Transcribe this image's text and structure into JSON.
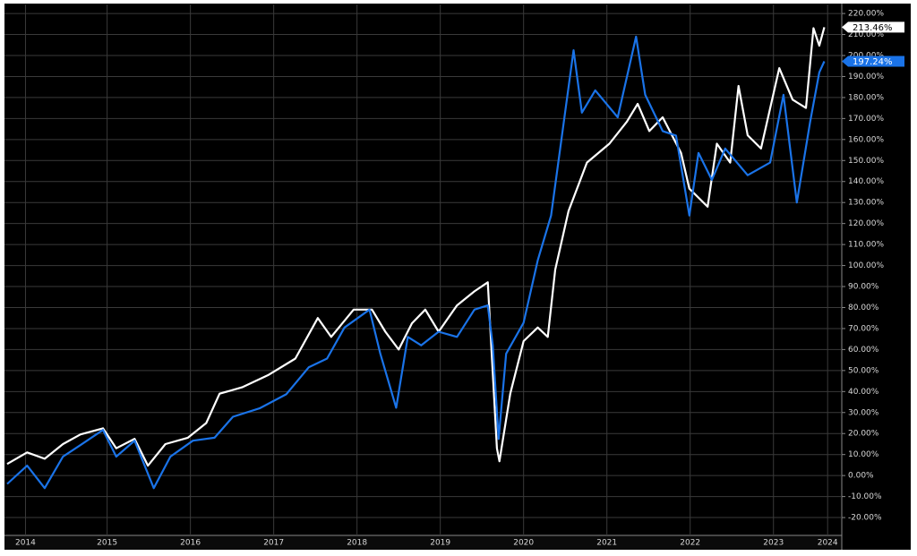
{
  "chart_data": {
    "type": "line",
    "xlim": [
      2014.3,
      2024.32
    ],
    "ylim": [
      -28.5,
      224.3
    ],
    "xticks": [
      {
        "value": 2014.52,
        "label": "2014"
      },
      {
        "value": 2015.5,
        "label": "2015"
      },
      {
        "value": 2016.5,
        "label": "2016"
      },
      {
        "value": 2017.5,
        "label": "2017"
      },
      {
        "value": 2018.5,
        "label": "2018"
      },
      {
        "value": 2019.5,
        "label": "2019"
      },
      {
        "value": 2020.5,
        "label": "2020"
      },
      {
        "value": 2021.5,
        "label": "2021"
      },
      {
        "value": 2022.5,
        "label": "2022"
      },
      {
        "value": 2023.5,
        "label": "2023"
      },
      {
        "value": 2024.15,
        "label": "2024"
      }
    ],
    "yticks": [
      {
        "value": -20,
        "label": "-20.00%"
      },
      {
        "value": -10,
        "label": "-10.00%"
      },
      {
        "value": 0,
        "label": "0.00%"
      },
      {
        "value": 10,
        "label": "10.00%"
      },
      {
        "value": 20,
        "label": "20.00%"
      },
      {
        "value": 30,
        "label": "30.00%"
      },
      {
        "value": 40,
        "label": "40.00%"
      },
      {
        "value": 50,
        "label": "50.00%"
      },
      {
        "value": 60,
        "label": "60.00%"
      },
      {
        "value": 70,
        "label": "70.00%"
      },
      {
        "value": 80,
        "label": "80.00%"
      },
      {
        "value": 90,
        "label": "90.00%"
      },
      {
        "value": 100,
        "label": "100.00%"
      },
      {
        "value": 110,
        "label": "110.00%"
      },
      {
        "value": 120,
        "label": "120.00%"
      },
      {
        "value": 130,
        "label": "130.00%"
      },
      {
        "value": 140,
        "label": "140.00%"
      },
      {
        "value": 150,
        "label": "150.00%"
      },
      {
        "value": 160,
        "label": "160.00%"
      },
      {
        "value": 170,
        "label": "170.00%"
      },
      {
        "value": 180,
        "label": "180.00%"
      },
      {
        "value": 190,
        "label": "190.00%"
      },
      {
        "value": 200,
        "label": "200.00%"
      },
      {
        "value": 210,
        "label": "210.00%"
      },
      {
        "value": 220,
        "label": "220.00%"
      }
    ],
    "grid": true,
    "series": [
      {
        "color": "#ffffff",
        "label_text_color": "#000000",
        "x": [
          2014.3,
          2014.54,
          2014.75,
          2014.97,
          2015.18,
          2015.45,
          2015.61,
          2015.83,
          2015.99,
          2016.2,
          2016.47,
          2016.69,
          2016.85,
          2017.12,
          2017.44,
          2017.76,
          2018.03,
          2018.19,
          2018.46,
          2018.68,
          2018.84,
          2019.0,
          2019.16,
          2019.32,
          2019.48,
          2019.7,
          2019.91,
          2020.07,
          2020.18,
          2020.21,
          2020.34,
          2020.5,
          2020.67,
          2020.79,
          2020.88,
          2021.04,
          2021.26,
          2021.53,
          2021.74,
          2021.87,
          2022.01,
          2022.17,
          2022.39,
          2022.49,
          2022.71,
          2022.82,
          2022.98,
          2023.08,
          2023.19,
          2023.35,
          2023.57,
          2023.73,
          2023.89,
          2023.98,
          2024.05,
          2024.11
        ],
        "values": [
          5.5,
          11,
          8,
          15,
          19.6,
          22.5,
          13,
          17.5,
          4.7,
          15,
          18,
          25,
          39,
          42,
          48,
          55.7,
          75,
          66,
          79,
          79,
          68.5,
          60,
          72.5,
          79,
          68.5,
          81,
          87.7,
          92,
          13,
          6.8,
          39,
          64,
          70.5,
          66,
          98,
          126,
          149,
          158,
          168.5,
          177,
          164,
          170.6,
          153.6,
          136.6,
          128,
          158,
          149,
          185.5,
          162,
          155.7,
          194,
          179,
          175,
          213,
          204.7,
          213.46
        ],
        "end_label": {
          "value": 213.46,
          "label": "213.46%"
        }
      },
      {
        "color": "#1a73e8",
        "label_text_color": "#ffffff",
        "x": [
          2014.3,
          2014.54,
          2014.75,
          2014.97,
          2015.18,
          2015.45,
          2015.61,
          2015.83,
          2016.06,
          2016.26,
          2016.53,
          2016.79,
          2017.01,
          2017.33,
          2017.65,
          2017.92,
          2018.14,
          2018.35,
          2018.65,
          2018.78,
          2018.97,
          2019.11,
          2019.27,
          2019.48,
          2019.7,
          2019.91,
          2020.07,
          2020.13,
          2020.2,
          2020.29,
          2020.5,
          2020.67,
          2020.83,
          2020.99,
          2021.1,
          2021.2,
          2021.36,
          2021.63,
          2021.85,
          2021.96,
          2022.17,
          2022.33,
          2022.49,
          2022.6,
          2022.76,
          2022.92,
          2023.19,
          2023.46,
          2023.62,
          2023.78,
          2023.94,
          2024.05,
          2024.11
        ],
        "values": [
          -4,
          4.7,
          -6,
          9,
          14.5,
          21.7,
          9,
          16.6,
          -6,
          9,
          16.6,
          18,
          28,
          32,
          38.7,
          51.5,
          55.7,
          70.5,
          79,
          58,
          32.3,
          66,
          62,
          68.5,
          66,
          79,
          81,
          62,
          17.4,
          58,
          72.8,
          102.5,
          123.8,
          170.6,
          202.5,
          172.8,
          183.4,
          170.6,
          209,
          181.3,
          164,
          161.9,
          123.8,
          153.6,
          140.8,
          155.7,
          143,
          149,
          181.3,
          130,
          168.5,
          192,
          197.24
        ],
        "end_label": {
          "value": 197.24,
          "label": "197.24%"
        }
      }
    ]
  }
}
